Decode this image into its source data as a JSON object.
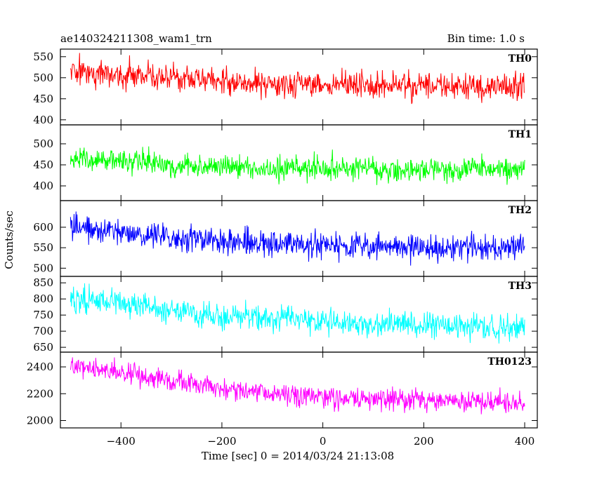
{
  "chart_data": {
    "type": "line",
    "title_left": "ae140324211308_wam1_trn",
    "title_right": "Bin time: 1.0 s",
    "xlabel": "Time [sec] 0 = 2014/03/24 21:13:08",
    "ylabel": "Counts/sec",
    "xlim": [
      -520,
      425
    ],
    "xticks": [
      -400,
      -200,
      0,
      200,
      400
    ],
    "x_start": -500,
    "x_end": 400,
    "bin_time": 1.0,
    "panels": [
      {
        "name": "TH0",
        "color": "#ff0000",
        "ylim": [
          388,
          568
        ],
        "yticks": [
          400,
          450,
          500,
          550
        ],
        "trend": [
          {
            "x": -500,
            "y": 518
          },
          {
            "x": -200,
            "y": 492
          },
          {
            "x": 0,
            "y": 482
          },
          {
            "x": 400,
            "y": 478
          }
        ],
        "noise_amplitude": 22
      },
      {
        "name": "TH1",
        "color": "#00ff00",
        "ylim": [
          365,
          545
        ],
        "yticks": [
          400,
          450,
          500
        ],
        "trend": [
          {
            "x": -500,
            "y": 465
          },
          {
            "x": -200,
            "y": 445
          },
          {
            "x": 0,
            "y": 440
          },
          {
            "x": 400,
            "y": 438
          }
        ],
        "noise_amplitude": 20
      },
      {
        "name": "TH2",
        "color": "#0000ff",
        "ylim": [
          480,
          665
        ],
        "yticks": [
          500,
          550,
          600
        ],
        "trend": [
          {
            "x": -500,
            "y": 600
          },
          {
            "x": -200,
            "y": 565
          },
          {
            "x": 0,
            "y": 555
          },
          {
            "x": 400,
            "y": 548
          }
        ],
        "noise_amplitude": 22
      },
      {
        "name": "TH3",
        "color": "#00ffff",
        "ylim": [
          635,
          870
        ],
        "yticks": [
          650,
          700,
          750,
          800,
          850
        ],
        "trend": [
          {
            "x": -500,
            "y": 805
          },
          {
            "x": -200,
            "y": 745
          },
          {
            "x": 0,
            "y": 730
          },
          {
            "x": 400,
            "y": 710
          }
        ],
        "noise_amplitude": 28
      },
      {
        "name": "TH0123",
        "color": "#ff00ff",
        "ylim": [
          1945,
          2510
        ],
        "yticks": [
          2000,
          2200,
          2400
        ],
        "trend": [
          {
            "x": -500,
            "y": 2410
          },
          {
            "x": -200,
            "y": 2240
          },
          {
            "x": 0,
            "y": 2170
          },
          {
            "x": 400,
            "y": 2130
          }
        ],
        "noise_amplitude": 55
      }
    ],
    "grid": false,
    "legend": "none"
  }
}
